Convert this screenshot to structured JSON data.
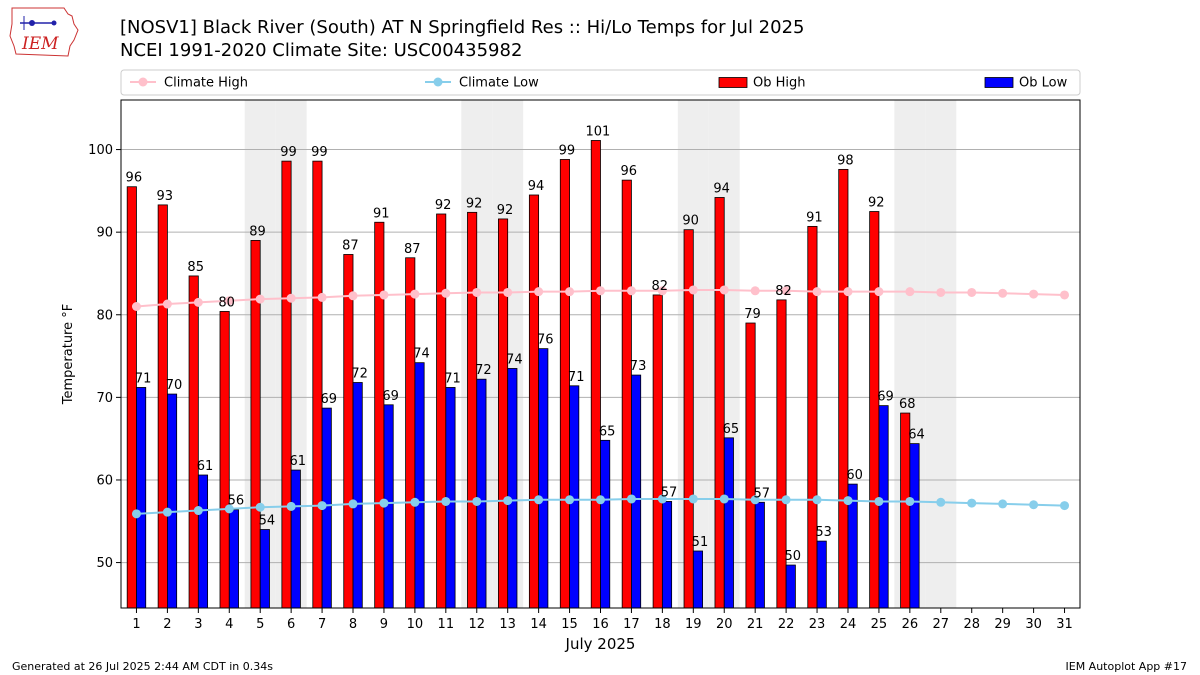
{
  "header": {
    "title_line1": "[NOSV1] Black River (South)  AT N Springfield Res :: Hi/Lo Temps for Jul 2025",
    "title_line2": "NCEI 1991-2020 Climate Site: USC00435982",
    "logo_text": "IEM"
  },
  "footer": {
    "generated": "Generated at 26 Jul 2025 2:44 AM CDT in 0.34s",
    "app": "IEM Autoplot App #17"
  },
  "colors": {
    "ob_high": "#ff0000",
    "ob_low": "#0000ff",
    "climate_high": "#ffc0cb",
    "climate_low": "#87ceeb",
    "weekend_shade": "#eeeeee",
    "grid": "#b0b0b0"
  },
  "chart_data": {
    "type": "bar",
    "title": "[NOSV1] Black River (South)  AT N Springfield Res :: Hi/Lo Temps for Jul 2025",
    "subtitle": "NCEI 1991-2020 Climate Site: USC00435982",
    "xlabel": "July 2025",
    "ylabel": "Temperature °F",
    "ylim": [
      44.5,
      106
    ],
    "xlim": [
      0.5,
      31.5
    ],
    "yticks": [
      50,
      60,
      70,
      80,
      90,
      100
    ],
    "grid": true,
    "legend": [
      "Climate High",
      "Climate Low",
      "Ob High",
      "Ob Low"
    ],
    "legend_position": "top",
    "categories": [
      "1",
      "2",
      "3",
      "4",
      "5",
      "6",
      "7",
      "8",
      "9",
      "10",
      "11",
      "12",
      "13",
      "14",
      "15",
      "16",
      "17",
      "18",
      "19",
      "20",
      "21",
      "22",
      "23",
      "24",
      "25",
      "26",
      "27",
      "28",
      "29",
      "30",
      "31"
    ],
    "shaded_days": [
      5,
      6,
      12,
      13,
      19,
      20,
      26,
      27
    ],
    "series": [
      {
        "name": "Ob High",
        "type": "bar",
        "values": [
          95.5,
          93.3,
          84.7,
          80.4,
          89.0,
          98.6,
          98.6,
          87.3,
          91.2,
          86.9,
          92.2,
          92.4,
          91.6,
          94.5,
          98.8,
          101.1,
          96.3,
          82.4,
          90.3,
          94.2,
          79.0,
          81.8,
          90.7,
          97.6,
          92.5,
          68.1,
          null,
          null,
          null,
          null,
          null
        ],
        "labels": [
          "96",
          "93",
          "85",
          "80",
          "89",
          "99",
          "99",
          "87",
          "91",
          "87",
          "92",
          "92",
          "92",
          "94",
          "99",
          "101",
          "96",
          "82",
          "90",
          "94",
          "79",
          "82",
          "91",
          "98",
          "92",
          "68",
          "",
          "",
          "",
          "",
          ""
        ]
      },
      {
        "name": "Ob Low",
        "type": "bar",
        "values": [
          71.2,
          70.4,
          60.6,
          56.4,
          54.0,
          61.2,
          68.7,
          71.8,
          69.1,
          74.2,
          71.2,
          72.2,
          73.5,
          75.9,
          71.4,
          64.8,
          72.7,
          57.4,
          51.4,
          65.1,
          57.3,
          49.7,
          52.6,
          59.5,
          69.0,
          64.4,
          null,
          null,
          null,
          null,
          null
        ],
        "labels": [
          "71",
          "70",
          "61",
          "56",
          "54",
          "61",
          "69",
          "72",
          "69",
          "74",
          "71",
          "72",
          "74",
          "76",
          "71",
          "65",
          "73",
          "57",
          "51",
          "65",
          "57",
          "50",
          "53",
          "60",
          "69",
          "64",
          "",
          "",
          "",
          "",
          ""
        ]
      },
      {
        "name": "Climate High",
        "type": "line",
        "values": [
          81.0,
          81.3,
          81.5,
          81.7,
          81.9,
          82.0,
          82.1,
          82.3,
          82.4,
          82.5,
          82.6,
          82.7,
          82.7,
          82.8,
          82.8,
          82.9,
          82.9,
          82.9,
          83.0,
          83.0,
          82.9,
          82.9,
          82.8,
          82.8,
          82.8,
          82.8,
          82.7,
          82.7,
          82.6,
          82.5,
          82.4
        ]
      },
      {
        "name": "Climate Low",
        "type": "line",
        "values": [
          55.9,
          56.1,
          56.3,
          56.5,
          56.7,
          56.8,
          56.9,
          57.1,
          57.2,
          57.3,
          57.4,
          57.4,
          57.5,
          57.6,
          57.6,
          57.6,
          57.7,
          57.7,
          57.7,
          57.7,
          57.6,
          57.6,
          57.6,
          57.5,
          57.4,
          57.4,
          57.3,
          57.2,
          57.1,
          57.0,
          56.9
        ]
      }
    ]
  }
}
